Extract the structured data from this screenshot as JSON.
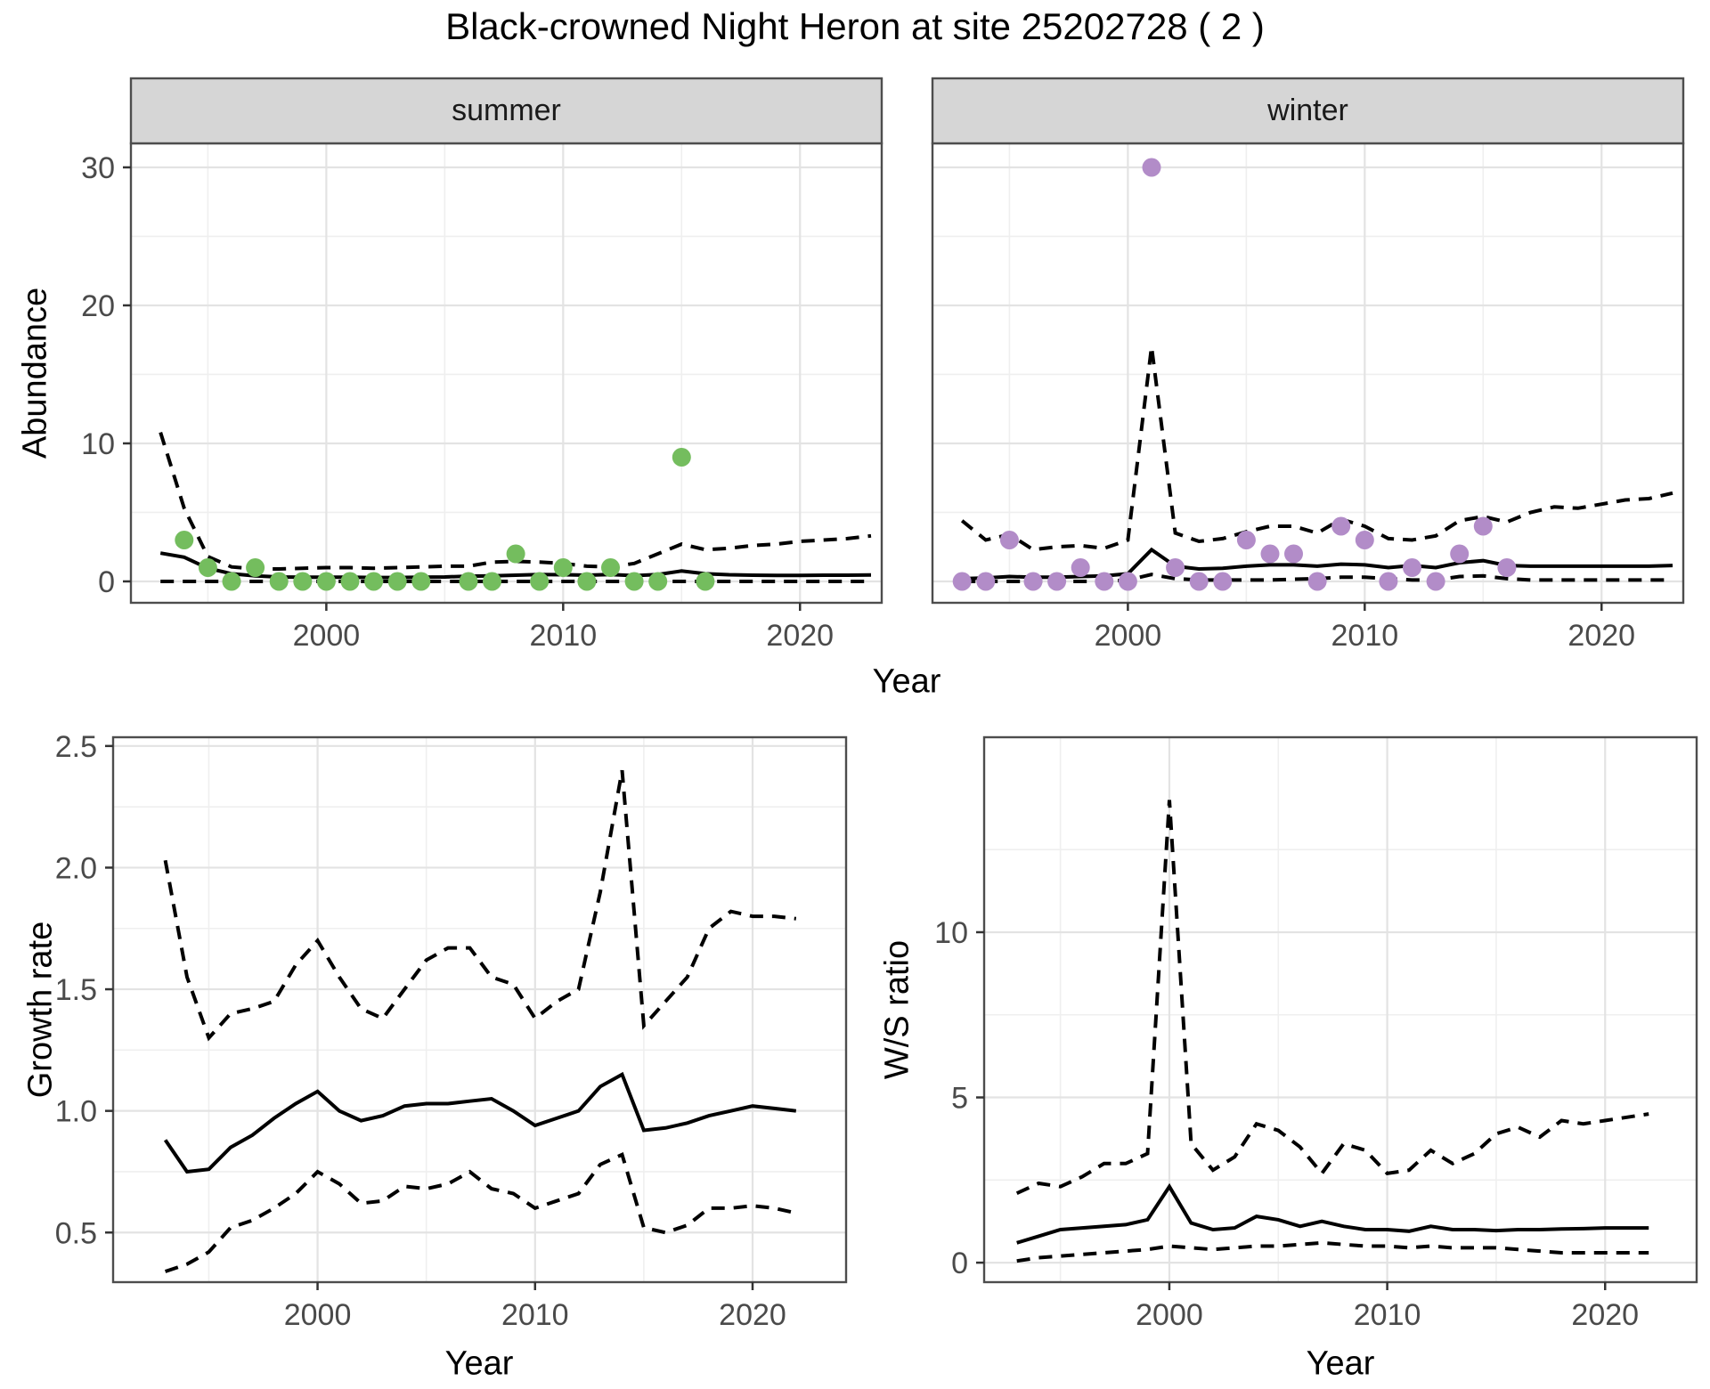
{
  "title": "Black-crowned Night Heron at site 25202728 ( 2 )",
  "colors": {
    "summer_point": "#74bd5e",
    "winter_point": "#b28cc8",
    "line": "#000000",
    "strip_background": "#d6d6d6",
    "panel_border": "#4d4d4d",
    "grid_major": "#e3e3e3",
    "grid_minor": "#efefef",
    "tick_label": "#4a4a4a"
  },
  "chart_data": [
    {
      "id": "abundance-summer",
      "type": "scatter",
      "facet_label": "summer",
      "ylabel": "Abundance",
      "xlabel": "Year",
      "x_ticks": [
        2000,
        2010,
        2020
      ],
      "y_ticks": [
        0,
        10,
        20,
        30
      ],
      "y_tick_labels": [
        "0",
        "10",
        "20",
        "30"
      ],
      "xlim": [
        1991.75,
        2023.45
      ],
      "ylim": [
        -1.55,
        31.74
      ],
      "grid": true,
      "legend": "none",
      "points": {
        "x": [
          1994,
          1995,
          1996,
          1997,
          1998,
          1999,
          2000,
          2001,
          2002,
          2003,
          2004,
          2006,
          2007,
          2008,
          2009,
          2010,
          2011,
          2012,
          2013,
          2014,
          2015,
          2016
        ],
        "y": [
          3,
          1,
          0,
          1,
          0,
          0,
          0,
          0,
          0,
          0,
          0,
          0,
          0,
          2,
          0,
          1,
          0,
          1,
          0,
          0,
          9,
          0
        ]
      },
      "lines": {
        "years": [
          1993,
          1994,
          1995,
          1996,
          1997,
          1998,
          1999,
          2000,
          2001,
          2002,
          2003,
          2004,
          2005,
          2006,
          2007,
          2008,
          2009,
          2010,
          2011,
          2012,
          2013,
          2014,
          2015,
          2016,
          2017,
          2018,
          2019,
          2020,
          2021,
          2022,
          2023
        ],
        "mean": [
          2.05,
          1.75,
          0.95,
          0.55,
          0.4,
          0.32,
          0.3,
          0.3,
          0.3,
          0.28,
          0.28,
          0.3,
          0.32,
          0.38,
          0.4,
          0.45,
          0.5,
          0.48,
          0.45,
          0.5,
          0.42,
          0.5,
          0.75,
          0.55,
          0.48,
          0.45,
          0.44,
          0.44,
          0.45,
          0.45,
          0.47
        ],
        "upper_ci": [
          10.8,
          5.3,
          1.8,
          1.05,
          0.9,
          0.9,
          0.95,
          1.0,
          1.0,
          0.95,
          1.0,
          1.05,
          1.1,
          1.1,
          1.4,
          1.45,
          1.4,
          1.3,
          1.1,
          1.05,
          1.3,
          2.0,
          2.7,
          2.3,
          2.4,
          2.6,
          2.7,
          2.9,
          3.0,
          3.1,
          3.3
        ],
        "lower_ci": [
          0,
          0,
          0,
          0,
          0,
          0,
          0,
          0,
          0,
          0,
          0,
          0,
          0,
          0,
          0,
          0,
          0,
          0,
          0,
          0,
          0,
          0,
          0,
          0,
          0,
          0,
          0,
          0,
          0,
          0,
          0
        ]
      }
    },
    {
      "id": "abundance-winter",
      "type": "scatter",
      "facet_label": "winter",
      "ylabel": "Abundance",
      "xlabel": "Year",
      "x_ticks": [
        2000,
        2010,
        2020
      ],
      "y_ticks": [
        0,
        10,
        20,
        30
      ],
      "y_tick_labels": [
        "0",
        "10",
        "20",
        "30"
      ],
      "xlim": [
        1991.75,
        2023.45
      ],
      "ylim": [
        -1.55,
        31.74
      ],
      "grid": true,
      "legend": "none",
      "points": {
        "x": [
          1993,
          1994,
          1995,
          1996,
          1997,
          1998,
          1999,
          2000,
          2001,
          2002,
          2003,
          2004,
          2005,
          2006,
          2007,
          2008,
          2009,
          2010,
          2011,
          2012,
          2013,
          2014,
          2015,
          2016
        ],
        "y": [
          0,
          0,
          3,
          0,
          0,
          1,
          0,
          0,
          30,
          1,
          0,
          0,
          3,
          2,
          2,
          0,
          4,
          3,
          0,
          1,
          0,
          2,
          4,
          1
        ]
      },
      "lines": {
        "years": [
          1993,
          1994,
          1995,
          1996,
          1997,
          1998,
          1999,
          2000,
          2001,
          2002,
          2003,
          2004,
          2005,
          2006,
          2007,
          2008,
          2009,
          2010,
          2011,
          2012,
          2013,
          2014,
          2015,
          2016,
          2017,
          2018,
          2019,
          2020,
          2021,
          2022,
          2023
        ],
        "mean": [
          0.2,
          0.25,
          0.35,
          0.3,
          0.3,
          0.35,
          0.4,
          0.55,
          2.3,
          1.1,
          0.9,
          0.95,
          1.1,
          1.2,
          1.2,
          1.1,
          1.25,
          1.2,
          1.0,
          1.15,
          1.0,
          1.35,
          1.5,
          1.15,
          1.1,
          1.1,
          1.1,
          1.1,
          1.1,
          1.1,
          1.15
        ],
        "upper_ci": [
          4.4,
          3.0,
          3.4,
          2.3,
          2.5,
          2.6,
          2.4,
          3.0,
          17.0,
          3.5,
          2.9,
          3.1,
          3.6,
          4.0,
          4.0,
          3.5,
          4.5,
          4.0,
          3.1,
          3.0,
          3.3,
          4.4,
          4.7,
          4.3,
          5.0,
          5.4,
          5.3,
          5.6,
          5.9,
          6.0,
          6.4
        ],
        "lower_ci": [
          0,
          0,
          0,
          0,
          0,
          0,
          0,
          0.1,
          0.5,
          0.2,
          0.1,
          0.1,
          0.1,
          0.1,
          0.15,
          0.2,
          0.3,
          0.3,
          0.2,
          0.1,
          0.1,
          0.35,
          0.4,
          0.2,
          0.1,
          0.1,
          0.1,
          0.1,
          0.1,
          0.1,
          0.1
        ]
      }
    },
    {
      "id": "growth-rate",
      "type": "line",
      "facet_label": "",
      "ylabel": "Growth rate",
      "xlabel": "Year",
      "x_ticks": [
        2000,
        2010,
        2020
      ],
      "y_ticks": [
        0.5,
        1.0,
        1.5,
        2.0,
        2.5
      ],
      "y_tick_labels": [
        "0.5",
        "1.0",
        "1.5",
        "2.0",
        "2.5"
      ],
      "xlim": [
        1990.6,
        2024.3
      ],
      "ylim": [
        0.296,
        2.536
      ],
      "grid": true,
      "legend": "none",
      "points": {
        "x": [],
        "y": []
      },
      "lines": {
        "years": [
          1993,
          1994,
          1995,
          1996,
          1997,
          1998,
          1999,
          2000,
          2001,
          2002,
          2003,
          2004,
          2005,
          2006,
          2007,
          2008,
          2009,
          2010,
          2011,
          2012,
          2013,
          2014,
          2015,
          2016,
          2017,
          2018,
          2019,
          2020,
          2021,
          2022
        ],
        "mean": [
          0.88,
          0.75,
          0.76,
          0.85,
          0.9,
          0.97,
          1.03,
          1.08,
          1.0,
          0.96,
          0.98,
          1.02,
          1.03,
          1.03,
          1.04,
          1.05,
          1.0,
          0.94,
          0.97,
          1.0,
          1.1,
          1.15,
          0.92,
          0.93,
          0.95,
          0.98,
          1.0,
          1.02,
          1.01,
          1.0
        ],
        "upper_ci": [
          2.03,
          1.55,
          1.3,
          1.4,
          1.42,
          1.45,
          1.6,
          1.7,
          1.55,
          1.42,
          1.38,
          1.5,
          1.62,
          1.67,
          1.67,
          1.55,
          1.52,
          1.38,
          1.45,
          1.5,
          1.9,
          2.4,
          1.35,
          1.45,
          1.55,
          1.75,
          1.82,
          1.8,
          1.8,
          1.79
        ],
        "lower_ci": [
          0.34,
          0.37,
          0.42,
          0.52,
          0.55,
          0.6,
          0.66,
          0.75,
          0.7,
          0.62,
          0.63,
          0.69,
          0.68,
          0.7,
          0.75,
          0.68,
          0.66,
          0.6,
          0.63,
          0.66,
          0.78,
          0.82,
          0.52,
          0.5,
          0.53,
          0.6,
          0.6,
          0.61,
          0.6,
          0.58
        ]
      }
    },
    {
      "id": "ws-ratio",
      "type": "line",
      "facet_label": "",
      "ylabel": "W/S ratio",
      "xlabel": "Year",
      "x_ticks": [
        2000,
        2010,
        2020
      ],
      "y_ticks": [
        0,
        5,
        10
      ],
      "y_tick_labels": [
        "0",
        "5",
        "10"
      ],
      "xlim": [
        1991.5,
        2024.2
      ],
      "ylim": [
        -0.59,
        15.9
      ],
      "grid": true,
      "legend": "none",
      "points": {
        "x": [],
        "y": []
      },
      "lines": {
        "years": [
          1993,
          1994,
          1995,
          1996,
          1997,
          1998,
          1999,
          2000,
          2001,
          2002,
          2003,
          2004,
          2005,
          2006,
          2007,
          2008,
          2009,
          2010,
          2011,
          2012,
          2013,
          2014,
          2015,
          2016,
          2017,
          2018,
          2019,
          2020,
          2021,
          2022
        ],
        "mean": [
          0.6,
          0.8,
          1.0,
          1.05,
          1.1,
          1.15,
          1.3,
          2.3,
          1.2,
          1.0,
          1.05,
          1.4,
          1.3,
          1.1,
          1.25,
          1.1,
          1.0,
          1.0,
          0.95,
          1.1,
          1.0,
          1.0,
          0.97,
          1.0,
          1.0,
          1.02,
          1.03,
          1.05,
          1.05,
          1.05
        ],
        "upper_ci": [
          2.1,
          2.4,
          2.3,
          2.6,
          3.0,
          3.0,
          3.3,
          14.0,
          3.6,
          2.8,
          3.2,
          4.2,
          4.0,
          3.5,
          2.7,
          3.6,
          3.4,
          2.7,
          2.8,
          3.4,
          3.0,
          3.3,
          3.9,
          4.1,
          3.8,
          4.3,
          4.2,
          4.3,
          4.4,
          4.5
        ],
        "lower_ci": [
          0.05,
          0.15,
          0.2,
          0.25,
          0.3,
          0.35,
          0.4,
          0.5,
          0.45,
          0.4,
          0.45,
          0.5,
          0.5,
          0.55,
          0.6,
          0.55,
          0.5,
          0.5,
          0.45,
          0.5,
          0.45,
          0.45,
          0.45,
          0.4,
          0.35,
          0.3,
          0.3,
          0.3,
          0.3,
          0.3
        ]
      }
    }
  ]
}
